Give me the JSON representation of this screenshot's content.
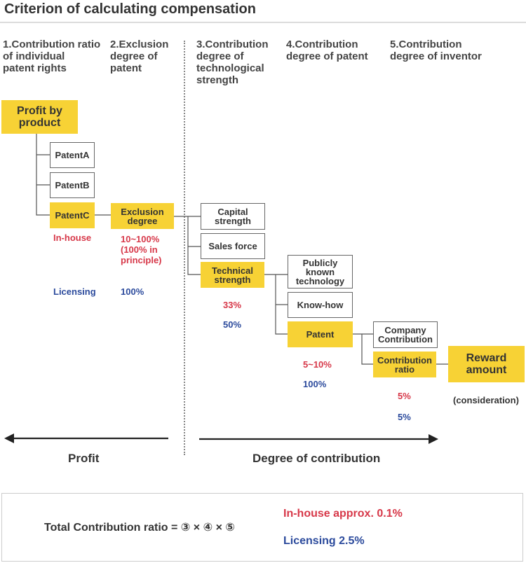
{
  "title": "Criterion of calculating compensation",
  "columns": [
    "1.Contribution ratio\n of individual\n patent rights",
    "2.Exclusion\n degree of\n patent",
    "3.Contribution\n degree of\n technological\n strength",
    "4.Contribution\n degree of patent",
    "5.Contribution\n degree of inventor"
  ],
  "boxes": {
    "profit_by_product": "Profit by\nproduct",
    "patent_a": "PatentA",
    "patent_b": "PatentB",
    "patent_c": "PatentC",
    "exclusion_degree": "Exclusion\ndegree",
    "capital_strength": "Capital\nstrength",
    "sales_force": "Sales force",
    "technical_strength": "Technical\nstrength",
    "publicly_known": "Publicly\nknown\ntechnology",
    "know_how": "Know-how",
    "patent": "Patent",
    "company_contribution": "Company\nContribution",
    "contribution_ratio": "Contribution\nratio",
    "reward_amount": "Reward\namount"
  },
  "labels": {
    "in_house": "In-house",
    "licensing": "Licensing",
    "excl_in_house": "10~100%\n(100% in\nprinciple)",
    "excl_licensing": "100%",
    "tech_in_house": "33%",
    "tech_licensing": "50%",
    "patent_in_house": "5~10%",
    "patent_licensing": "100%",
    "inventor_in_house": "5%",
    "inventor_licensing": "5%",
    "consideration": "(consideration)"
  },
  "axis": {
    "profit": "Profit",
    "degree_of_contribution": "Degree of contribution"
  },
  "footer": {
    "formula": "Total Contribution ratio = ③ × ④ × ⑤",
    "in_house": "In-house approx. 0.1%",
    "licensing": "Licensing 2.5%"
  },
  "colors": {
    "highlight": "#f7d235",
    "in_house": "#d73849",
    "licensing": "#2b4a9c"
  }
}
